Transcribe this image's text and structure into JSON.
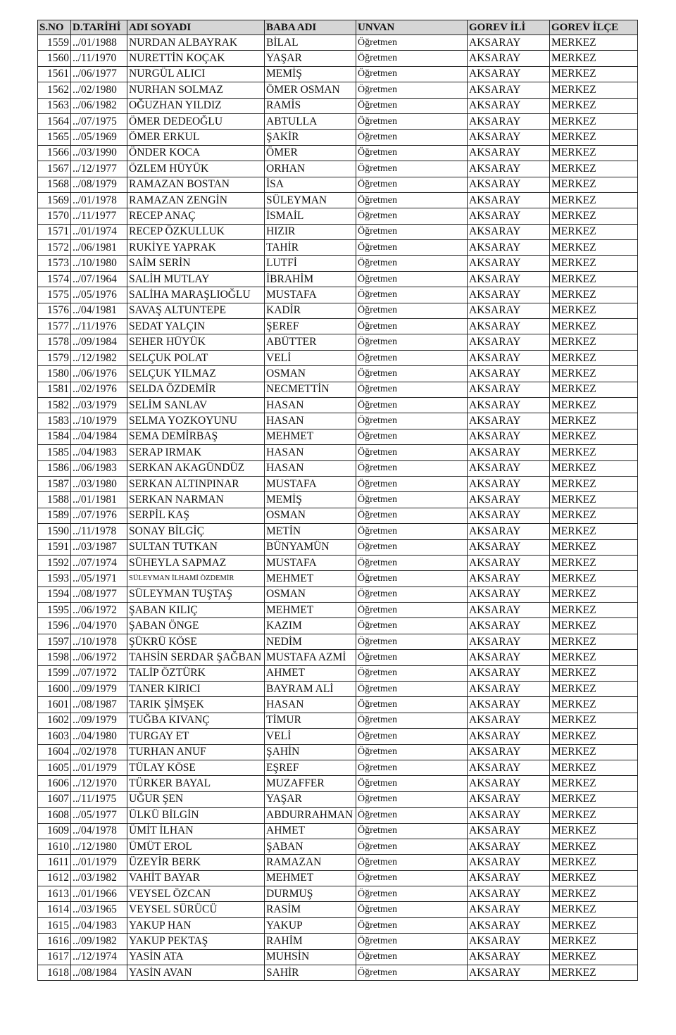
{
  "headers": [
    "S.NO",
    "D.TARİHİ",
    "ADI SOYADI",
    "BABA ADI",
    "UNVAN",
    "GOREV İLİ",
    "GOREV İLÇE"
  ],
  "rows": [
    [
      "1559",
      "../01/1988",
      "NURDAN ALBAYRAK",
      "BİLAL",
      "Öğretmen",
      "AKSARAY",
      "MERKEZ"
    ],
    [
      "1560",
      "../11/1970",
      "NURETTİN KOÇAK",
      "YAŞAR",
      "Öğretmen",
      "AKSARAY",
      "MERKEZ"
    ],
    [
      "1561",
      "../06/1977",
      "NURGÜL ALICI",
      "MEMİŞ",
      "Öğretmen",
      "AKSARAY",
      "MERKEZ"
    ],
    [
      "1562",
      "../02/1980",
      "NURHAN SOLMAZ",
      "ÖMER OSMAN",
      "Öğretmen",
      "AKSARAY",
      "MERKEZ"
    ],
    [
      "1563",
      "../06/1982",
      "OĞUZHAN YILDIZ",
      "RAMİS",
      "Öğretmen",
      "AKSARAY",
      "MERKEZ"
    ],
    [
      "1564",
      "../07/1975",
      "ÖMER DEDEOĞLU",
      "ABTULLA",
      "Öğretmen",
      "AKSARAY",
      "MERKEZ"
    ],
    [
      "1565",
      "../05/1969",
      "ÖMER ERKUL",
      "ŞAKİR",
      "Öğretmen",
      "AKSARAY",
      "MERKEZ"
    ],
    [
      "1566",
      "../03/1990",
      "ÖNDER KOCA",
      "ÖMER",
      "Öğretmen",
      "AKSARAY",
      "MERKEZ"
    ],
    [
      "1567",
      "../12/1977",
      "ÖZLEM HÜYÜK",
      "ORHAN",
      "Öğretmen",
      "AKSARAY",
      "MERKEZ"
    ],
    [
      "1568",
      "../08/1979",
      "RAMAZAN BOSTAN",
      "İSA",
      "Öğretmen",
      "AKSARAY",
      "MERKEZ"
    ],
    [
      "1569",
      "../01/1978",
      "RAMAZAN ZENGİN",
      "SÜLEYMAN",
      "Öğretmen",
      "AKSARAY",
      "MERKEZ"
    ],
    [
      "1570",
      "../11/1977",
      "RECEP ANAÇ",
      "İSMAİL",
      "Öğretmen",
      "AKSARAY",
      "MERKEZ"
    ],
    [
      "1571",
      "../01/1974",
      "RECEP ÖZKULLUK",
      "HIZIR",
      "Öğretmen",
      "AKSARAY",
      "MERKEZ"
    ],
    [
      "1572",
      "../06/1981",
      "RUKİYE YAPRAK",
      "TAHİR",
      "Öğretmen",
      "AKSARAY",
      "MERKEZ"
    ],
    [
      "1573",
      "../10/1980",
      "SAİM SERİN",
      "LUTFİ",
      "Öğretmen",
      "AKSARAY",
      "MERKEZ"
    ],
    [
      "1574",
      "../07/1964",
      "SALİH MUTLAY",
      "İBRAHİM",
      "Öğretmen",
      "AKSARAY",
      "MERKEZ"
    ],
    [
      "1575",
      "../05/1976",
      "SALİHA MARAŞLIOĞLU",
      "MUSTAFA",
      "Öğretmen",
      "AKSARAY",
      "MERKEZ"
    ],
    [
      "1576",
      "../04/1981",
      "SAVAŞ ALTUNTEPE",
      "KADİR",
      "Öğretmen",
      "AKSARAY",
      "MERKEZ"
    ],
    [
      "1577",
      "../11/1976",
      "SEDAT YALÇIN",
      "ŞEREF",
      "Öğretmen",
      "AKSARAY",
      "MERKEZ"
    ],
    [
      "1578",
      "../09/1984",
      "SEHER HÜYÜK",
      "ABÜTTER",
      "Öğretmen",
      "AKSARAY",
      "MERKEZ"
    ],
    [
      "1579",
      "../12/1982",
      "SELÇUK POLAT",
      "VELİ",
      "Öğretmen",
      "AKSARAY",
      "MERKEZ"
    ],
    [
      "1580",
      "../06/1976",
      "SELÇUK YILMAZ",
      "OSMAN",
      "Öğretmen",
      "AKSARAY",
      "MERKEZ"
    ],
    [
      "1581",
      "../02/1976",
      "SELDA ÖZDEMİR",
      "NECMETTİN",
      "Öğretmen",
      "AKSARAY",
      "MERKEZ"
    ],
    [
      "1582",
      "../03/1979",
      "SELİM SANLAV",
      "HASAN",
      "Öğretmen",
      "AKSARAY",
      "MERKEZ"
    ],
    [
      "1583",
      "../10/1979",
      "SELMA YOZKOYUNU",
      "HASAN",
      "Öğretmen",
      "AKSARAY",
      "MERKEZ"
    ],
    [
      "1584",
      "../04/1984",
      "SEMA DEMİRBAŞ",
      "MEHMET",
      "Öğretmen",
      "AKSARAY",
      "MERKEZ"
    ],
    [
      "1585",
      "../04/1983",
      "SERAP IRMAK",
      "HASAN",
      "Öğretmen",
      "AKSARAY",
      "MERKEZ"
    ],
    [
      "1586",
      "../06/1983",
      "SERKAN AKAGÜNDÜZ",
      "HASAN",
      "Öğretmen",
      "AKSARAY",
      "MERKEZ"
    ],
    [
      "1587",
      "../03/1980",
      "SERKAN ALTINPINAR",
      "MUSTAFA",
      "Öğretmen",
      "AKSARAY",
      "MERKEZ"
    ],
    [
      "1588",
      "../01/1981",
      "SERKAN NARMAN",
      "MEMİŞ",
      "Öğretmen",
      "AKSARAY",
      "MERKEZ"
    ],
    [
      "1589",
      "../07/1976",
      "SERPİL KAŞ",
      "OSMAN",
      "Öğretmen",
      "AKSARAY",
      "MERKEZ"
    ],
    [
      "1590",
      "../11/1978",
      "SONAY BİLGİÇ",
      "METİN",
      "Öğretmen",
      "AKSARAY",
      "MERKEZ"
    ],
    [
      "1591",
      "../03/1987",
      "SULTAN TUTKAN",
      "BÜNYAMÜN",
      "Öğretmen",
      "AKSARAY",
      "MERKEZ"
    ],
    [
      "1592",
      "../07/1974",
      "SÜHEYLA SAPMAZ",
      "MUSTAFA",
      "Öğretmen",
      "AKSARAY",
      "MERKEZ"
    ],
    [
      "1593",
      "../05/1971",
      "SÜLEYMAN İLHAMİ ÖZDEMİR",
      "MEHMET",
      "Öğretmen",
      "AKSARAY",
      "MERKEZ"
    ],
    [
      "1594",
      "../08/1977",
      "SÜLEYMAN TUŞTAŞ",
      "OSMAN",
      "Öğretmen",
      "AKSARAY",
      "MERKEZ"
    ],
    [
      "1595",
      "../06/1972",
      "ŞABAN KILIÇ",
      "MEHMET",
      "Öğretmen",
      "AKSARAY",
      "MERKEZ"
    ],
    [
      "1596",
      "../04/1970",
      "ŞABAN ÖNGE",
      "KAZIM",
      "Öğretmen",
      "AKSARAY",
      "MERKEZ"
    ],
    [
      "1597",
      "../10/1978",
      "ŞÜKRÜ KÖSE",
      "NEDİM",
      "Öğretmen",
      "AKSARAY",
      "MERKEZ"
    ],
    [
      "1598",
      "../06/1972",
      "TAHSİN SERDAR ŞAĞBAN",
      "MUSTAFA AZMİ",
      "Öğretmen",
      "AKSARAY",
      "MERKEZ"
    ],
    [
      "1599",
      "../07/1972",
      "TALİP ÖZTÜRK",
      "AHMET",
      "Öğretmen",
      "AKSARAY",
      "MERKEZ"
    ],
    [
      "1600",
      "../09/1979",
      "TANER KIRICI",
      "BAYRAM ALİ",
      "Öğretmen",
      "AKSARAY",
      "MERKEZ"
    ],
    [
      "1601",
      "../08/1987",
      "TARIK ŞİMŞEK",
      "HASAN",
      "Öğretmen",
      "AKSARAY",
      "MERKEZ"
    ],
    [
      "1602",
      "../09/1979",
      "TUĞBA KIVANÇ",
      "TİMUR",
      "Öğretmen",
      "AKSARAY",
      "MERKEZ"
    ],
    [
      "1603",
      "../04/1980",
      "TURGAY ET",
      "VELİ",
      "Öğretmen",
      "AKSARAY",
      "MERKEZ"
    ],
    [
      "1604",
      "../02/1978",
      "TURHAN ANUF",
      "ŞAHİN",
      "Öğretmen",
      "AKSARAY",
      "MERKEZ"
    ],
    [
      "1605",
      "../01/1979",
      "TÜLAY KÖSE",
      "EŞREF",
      "Öğretmen",
      "AKSARAY",
      "MERKEZ"
    ],
    [
      "1606",
      "../12/1970",
      "TÜRKER BAYAL",
      "MUZAFFER",
      "Öğretmen",
      "AKSARAY",
      "MERKEZ"
    ],
    [
      "1607",
      "../11/1975",
      "UĞUR ŞEN",
      "YAŞAR",
      "Öğretmen",
      "AKSARAY",
      "MERKEZ"
    ],
    [
      "1608",
      "../05/1977",
      "ÜLKÜ BİLGİN",
      "ABDURRAHMAN",
      "Öğretmen",
      "AKSARAY",
      "MERKEZ"
    ],
    [
      "1609",
      "../04/1978",
      "ÜMİT İLHAN",
      "AHMET",
      "Öğretmen",
      "AKSARAY",
      "MERKEZ"
    ],
    [
      "1610",
      "../12/1980",
      "ÜMÜT EROL",
      "ŞABAN",
      "Öğretmen",
      "AKSARAY",
      "MERKEZ"
    ],
    [
      "1611",
      "../01/1979",
      "ÜZEYİR BERK",
      "RAMAZAN",
      "Öğretmen",
      "AKSARAY",
      "MERKEZ"
    ],
    [
      "1612",
      "../03/1982",
      "VAHİT BAYAR",
      "MEHMET",
      "Öğretmen",
      "AKSARAY",
      "MERKEZ"
    ],
    [
      "1613",
      "../01/1966",
      "VEYSEL ÖZCAN",
      "DURMUŞ",
      "Öğretmen",
      "AKSARAY",
      "MERKEZ"
    ],
    [
      "1614",
      "../03/1965",
      "VEYSEL SÜRÜCÜ",
      "RASİM",
      "Öğretmen",
      "AKSARAY",
      "MERKEZ"
    ],
    [
      "1615",
      "../04/1983",
      "YAKUP HAN",
      "YAKUP",
      "Öğretmen",
      "AKSARAY",
      "MERKEZ"
    ],
    [
      "1616",
      "../09/1982",
      "YAKUP PEKTAŞ",
      "RAHİM",
      "Öğretmen",
      "AKSARAY",
      "MERKEZ"
    ],
    [
      "1617",
      "../12/1974",
      "YASİN ATA",
      "MUHSİN",
      "Öğretmen",
      "AKSARAY",
      "MERKEZ"
    ],
    [
      "1618",
      "../08/1984",
      "YASİN AVAN",
      "SAHİR",
      "Öğretmen",
      "AKSARAY",
      "MERKEZ"
    ]
  ]
}
